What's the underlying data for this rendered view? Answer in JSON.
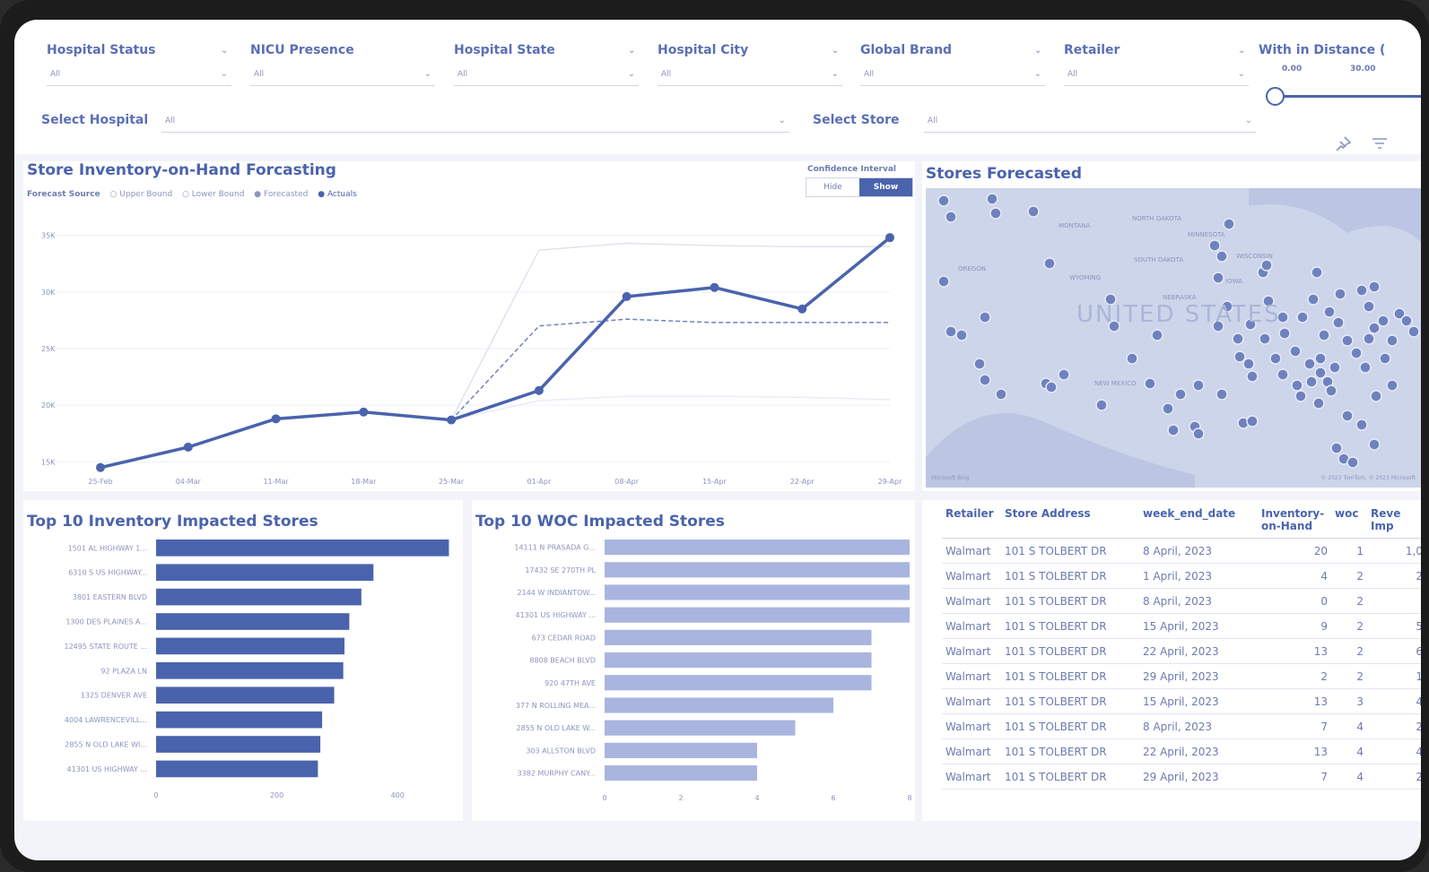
{
  "filters": [
    {
      "label": "Hospital Status",
      "value": "All"
    },
    {
      "label": "NICU Presence",
      "value": "All"
    },
    {
      "label": "Hospital State",
      "value": "All"
    },
    {
      "label": "Hospital City",
      "value": "All"
    },
    {
      "label": "Global Brand",
      "value": "All"
    },
    {
      "label": "Retailer",
      "value": "All"
    }
  ],
  "distance": {
    "label": "With in Distance (",
    "min": "0.00",
    "max": "30.00"
  },
  "select_hospital": {
    "label": "Select Hospital",
    "value": "All"
  },
  "select_store": {
    "label": "Select Store",
    "value": "All"
  },
  "forecast": {
    "title": "Store Inventory-on-Hand Forcasting",
    "legend_title": "Forecast Source",
    "legend": [
      "Upper Bound",
      "Lower Bound",
      "Forecasted",
      "Actuals"
    ],
    "ci_label": "Confidence Interval",
    "hide": "Hide",
    "show": "Show"
  },
  "map": {
    "title": "Stores Forecasted",
    "country_label": "UNITED STATES",
    "states": [
      "MONTANA",
      "NORTH DAKOTA",
      "SOUTH DAKOTA",
      "WYOMING",
      "NEBRASKA",
      "OREGON",
      "IOWA",
      "NEW MEXICO",
      "MINNESOTA",
      "WISCONSIN"
    ],
    "attr_left": "Microsoft Bing",
    "attr_right": "© 2023 TomTom, © 2023 Microsoft"
  },
  "inv_chart": {
    "title": "Top 10 Inventory Impacted Stores"
  },
  "woc_chart": {
    "title": "Top 10 WOC Impacted Stores"
  },
  "chart_data": [
    {
      "type": "line",
      "title": "Store Inventory-on-Hand Forcasting",
      "categories": [
        "25-Feb",
        "04-Mar",
        "11-Mar",
        "18-Mar",
        "25-Mar",
        "01-Apr",
        "08-Apr",
        "15-Apr",
        "22-Apr",
        "29-Apr"
      ],
      "y_ticks": [
        "15K",
        "20K",
        "25K",
        "30K",
        "35K"
      ],
      "ylim": [
        14000,
        36000
      ],
      "series": [
        {
          "name": "Actuals",
          "values": [
            14500,
            16300,
            18800,
            19400,
            18700,
            21300,
            29600,
            30400,
            28500,
            34800
          ]
        },
        {
          "name": "Forecasted",
          "values": [
            null,
            null,
            null,
            null,
            18700,
            27000,
            27600,
            27300,
            27300,
            27300
          ]
        },
        {
          "name": "Upper Bound",
          "values": [
            null,
            null,
            null,
            null,
            18700,
            33700,
            34300,
            34100,
            34000,
            34000
          ]
        },
        {
          "name": "Lower Bound",
          "values": [
            null,
            null,
            null,
            null,
            18700,
            20400,
            20800,
            20800,
            20700,
            20500
          ]
        }
      ]
    },
    {
      "type": "bar",
      "title": "Top 10 Inventory Impacted Stores",
      "categories": [
        "1501 AL HIGHWAY 1...",
        "6310 S US HIGHWAY...",
        "3801 EASTERN BLVD",
        "1300 DES PLAINES A...",
        "12495 STATE ROUTE ...",
        "92 PLAZA LN",
        "1325 DENVER AVE",
        "4004 LAWRENCEVILL...",
        "2855 N OLD LAKE WI...",
        "41301 US HIGHWAY ..."
      ],
      "values": [
        485,
        360,
        340,
        320,
        312,
        310,
        295,
        275,
        272,
        268
      ],
      "x_ticks": [
        "0",
        "200",
        "400"
      ],
      "xlim": [
        0,
        520
      ]
    },
    {
      "type": "bar",
      "title": "Top 10 WOC Impacted Stores",
      "categories": [
        "14111 N PRASADA G...",
        "17432 SE 270TH PL",
        "2144 W INDIANTOW...",
        "41301 US HIGHWAY ...",
        "673 CEDAR ROAD",
        "8808 BEACH BLVD",
        "920 47TH AVE",
        "377 N ROLLING MEA...",
        "2855 N OLD LAKE W...",
        "303 ALLSTON BLVD",
        "3382 MURPHY CANY..."
      ],
      "values": [
        8,
        8,
        8,
        8,
        7,
        7,
        7,
        6,
        5,
        4,
        4
      ],
      "x_ticks": [
        "0",
        "2",
        "4",
        "6",
        "8"
      ],
      "xlim": [
        0,
        8
      ]
    }
  ],
  "table": {
    "headers": [
      "Retailer",
      "Store Address",
      "week_end_date",
      "Inventory-on-Hand",
      "woc",
      "Reve Imp"
    ],
    "rows": [
      [
        "Walmart",
        "101 S TOLBERT DR",
        "8 April, 2023",
        "20",
        "1",
        "1,0"
      ],
      [
        "Walmart",
        "101 S TOLBERT DR",
        "1 April, 2023",
        "4",
        "2",
        "2"
      ],
      [
        "Walmart",
        "101 S TOLBERT DR",
        "8 April, 2023",
        "0",
        "2",
        ""
      ],
      [
        "Walmart",
        "101 S TOLBERT DR",
        "15 April, 2023",
        "9",
        "2",
        "5"
      ],
      [
        "Walmart",
        "101 S TOLBERT DR",
        "22 April, 2023",
        "13",
        "2",
        "6"
      ],
      [
        "Walmart",
        "101 S TOLBERT DR",
        "29 April, 2023",
        "2",
        "2",
        "1"
      ],
      [
        "Walmart",
        "101 S TOLBERT DR",
        "15 April, 2023",
        "13",
        "3",
        "4"
      ],
      [
        "Walmart",
        "101 S TOLBERT DR",
        "8 April, 2023",
        "7",
        "4",
        "2"
      ],
      [
        "Walmart",
        "101 S TOLBERT DR",
        "22 April, 2023",
        "13",
        "4",
        "4"
      ],
      [
        "Walmart",
        "101 S TOLBERT DR",
        "29 April, 2023",
        "7",
        "4",
        "2"
      ]
    ]
  },
  "colors": {
    "accent": "#4a63ad",
    "light_bar": "#a9b5de",
    "map_bg": "#cdd5ea",
    "dot": "#6f82bf"
  }
}
